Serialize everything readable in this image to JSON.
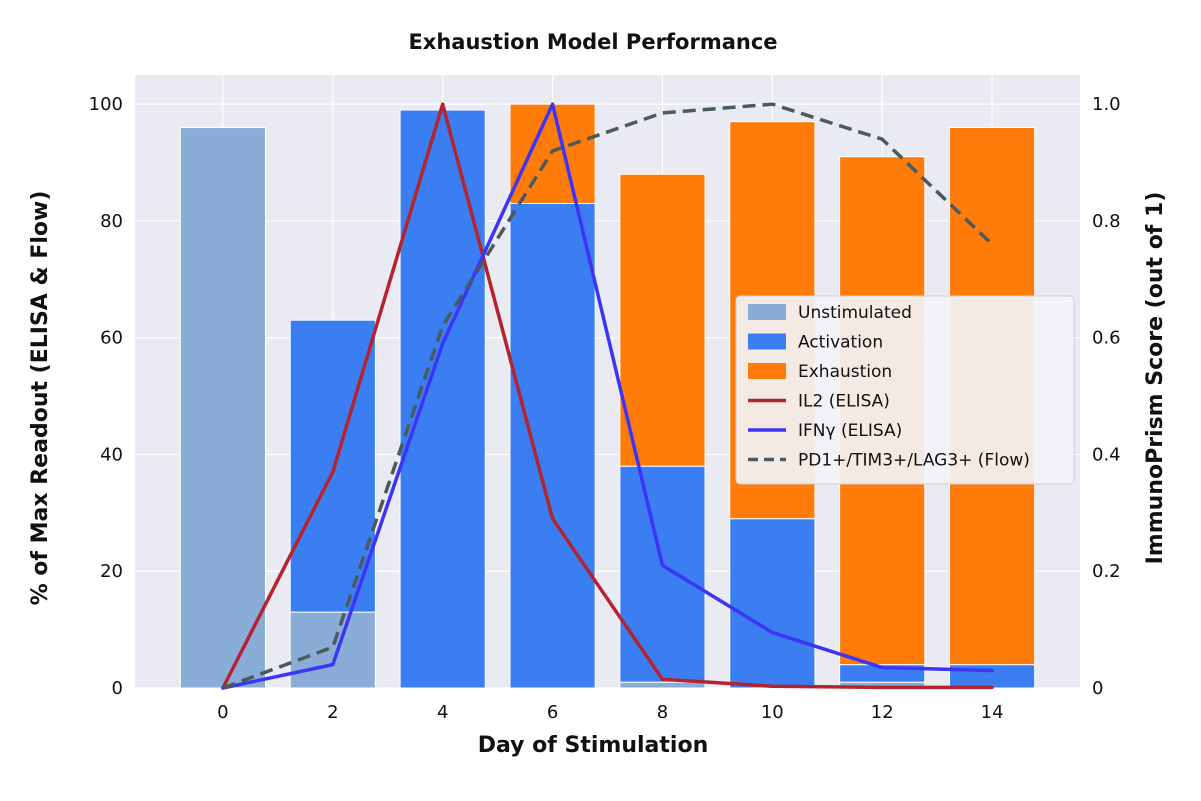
{
  "chart_data": {
    "type": "bar",
    "title": "Exhaustion Model Performance",
    "xlabel": "Day of Stimulation",
    "ylabel": "% of Max Readout (ELISA & Flow)",
    "ylabel_right": "ImmunoPrism Score (out of 1)",
    "x_ticks": [
      "0",
      "2",
      "4",
      "6",
      "8",
      "10",
      "12",
      "14"
    ],
    "y_ticks": [
      "0",
      "20",
      "40",
      "60",
      "80",
      "100"
    ],
    "y2_ticks": [
      "0",
      "0.2",
      "0.4",
      "0.6",
      "0.8",
      "1.0"
    ],
    "xlim": [
      -1.6,
      15.6
    ],
    "ylim": [
      0,
      105
    ],
    "y2lim": [
      0,
      1.05
    ],
    "grid": true,
    "legend_position": "center-right",
    "categories": [
      0,
      2,
      4,
      6,
      8,
      10,
      12,
      14
    ],
    "bar_series": [
      {
        "name": "Unstimulated",
        "color": "#8aadd7",
        "values": [
          0.96,
          0.13,
          0.0,
          0.0,
          0.01,
          0.0,
          0.01,
          0.0
        ]
      },
      {
        "name": "Activation",
        "color": "#3a7ef2",
        "values": [
          0.0,
          0.5,
          0.99,
          0.83,
          0.37,
          0.29,
          0.03,
          0.04
        ]
      },
      {
        "name": "Exhaustion",
        "color": "#ff7b0a",
        "values": [
          0.0,
          0.0,
          0.0,
          0.17,
          0.5,
          0.68,
          0.87,
          0.92
        ]
      }
    ],
    "line_series": [
      {
        "name": "IL2 (ELISA)",
        "color": "#b5232e",
        "dashed": false,
        "x": [
          0,
          2,
          4,
          6,
          8,
          10,
          12,
          14
        ],
        "values": [
          0,
          37,
          100,
          29,
          1.5,
          0.3,
          0.1,
          0.1
        ]
      },
      {
        "name": "IFNγ (ELISA)",
        "color": "#3c35f5",
        "dashed": false,
        "x": [
          0,
          2,
          4,
          6,
          8,
          10,
          12,
          14
        ],
        "values": [
          0,
          4,
          59,
          100,
          21,
          9.5,
          3.5,
          3
        ]
      },
      {
        "name": "PD1+/TIM3+/LAG3+ (Flow)",
        "color": "#4a5a5e",
        "dashed": true,
        "x": [
          0,
          2,
          4,
          6,
          8,
          10,
          12,
          14
        ],
        "values": [
          0,
          7,
          62,
          92,
          98.5,
          100,
          94,
          76
        ]
      }
    ]
  }
}
